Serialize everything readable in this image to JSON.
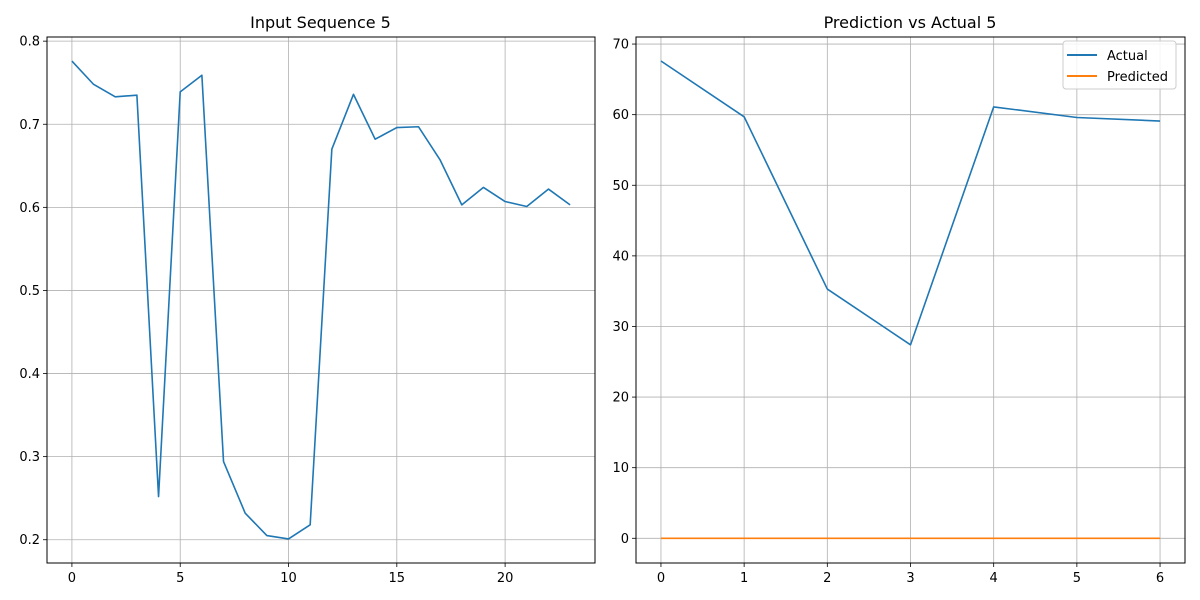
{
  "chart_data": [
    {
      "type": "line",
      "title": "Input Sequence 5",
      "xlabel": "",
      "ylabel": "",
      "xlim": [
        -1.15,
        24.15
      ],
      "ylim": [
        0.172,
        0.805
      ],
      "xticks": [
        0,
        5,
        10,
        15,
        20
      ],
      "yticks": [
        0.2,
        0.3,
        0.4,
        0.5,
        0.6,
        0.7,
        0.8
      ],
      "ytick_labels": [
        "0.2",
        "0.3",
        "0.4",
        "0.5",
        "0.6",
        "0.7",
        "0.8"
      ],
      "grid": true,
      "legend": null,
      "series": [
        {
          "color": "#1f77b4",
          "x": [
            0,
            1,
            2,
            3,
            4,
            5,
            6,
            7,
            8,
            9,
            10,
            11,
            12,
            13,
            14,
            15,
            16,
            17,
            18,
            19,
            20,
            21,
            22,
            23
          ],
          "values": [
            0.776,
            0.748,
            0.733,
            0.735,
            0.252,
            0.739,
            0.759,
            0.294,
            0.232,
            0.205,
            0.201,
            0.218,
            0.67,
            0.736,
            0.682,
            0.696,
            0.697,
            0.657,
            0.603,
            0.624,
            0.607,
            0.601,
            0.622,
            0.603
          ]
        }
      ]
    },
    {
      "type": "line",
      "title": "Prediction vs Actual 5",
      "xlabel": "",
      "ylabel": "",
      "xlim": [
        -0.3,
        6.3
      ],
      "ylim": [
        -3.5,
        71.0
      ],
      "xticks": [
        0,
        1,
        2,
        3,
        4,
        5,
        6
      ],
      "yticks": [
        0,
        10,
        20,
        30,
        40,
        50,
        60,
        70
      ],
      "ytick_labels": [
        "0",
        "10",
        "20",
        "30",
        "40",
        "50",
        "60",
        "70"
      ],
      "grid": true,
      "legend": "top-right",
      "series": [
        {
          "name": "Actual",
          "color": "#1f77b4",
          "x": [
            0,
            1,
            2,
            3,
            4,
            5,
            6
          ],
          "values": [
            67.6,
            59.7,
            35.3,
            27.4,
            61.1,
            59.6,
            59.1
          ]
        },
        {
          "name": "Predicted",
          "color": "#ff7f0e",
          "x": [
            0,
            1,
            2,
            3,
            4,
            5,
            6
          ],
          "values": [
            0,
            0,
            0,
            0,
            0,
            0,
            0
          ]
        }
      ]
    }
  ]
}
